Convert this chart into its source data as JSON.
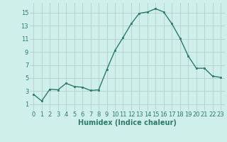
{
  "x": [
    0,
    1,
    2,
    3,
    4,
    5,
    6,
    7,
    8,
    9,
    10,
    11,
    12,
    13,
    14,
    15,
    16,
    17,
    18,
    19,
    20,
    21,
    22,
    23
  ],
  "y": [
    2.5,
    1.5,
    3.3,
    3.2,
    4.2,
    3.7,
    3.6,
    3.1,
    3.2,
    6.3,
    9.2,
    11.2,
    13.3,
    14.9,
    15.1,
    15.6,
    15.1,
    13.3,
    11.1,
    8.4,
    6.5,
    6.5,
    5.3,
    5.1
  ],
  "xlabel": "Humidex (Indice chaleur)",
  "xlim": [
    -0.5,
    23.5
  ],
  "ylim": [
    0.0,
    16.5
  ],
  "yticks": [
    1,
    3,
    5,
    7,
    9,
    11,
    13,
    15
  ],
  "xticks": [
    0,
    1,
    2,
    3,
    4,
    5,
    6,
    7,
    8,
    9,
    10,
    11,
    12,
    13,
    14,
    15,
    16,
    17,
    18,
    19,
    20,
    21,
    22,
    23
  ],
  "line_color": "#2a7a6d",
  "marker_color": "#2a7a6d",
  "bg_color": "#cff0ea",
  "grid_color": "#b0c8c4",
  "label_color": "#2a7a6d",
  "tick_color": "#2a7a6d",
  "label_fontsize": 7,
  "tick_fontsize": 6
}
